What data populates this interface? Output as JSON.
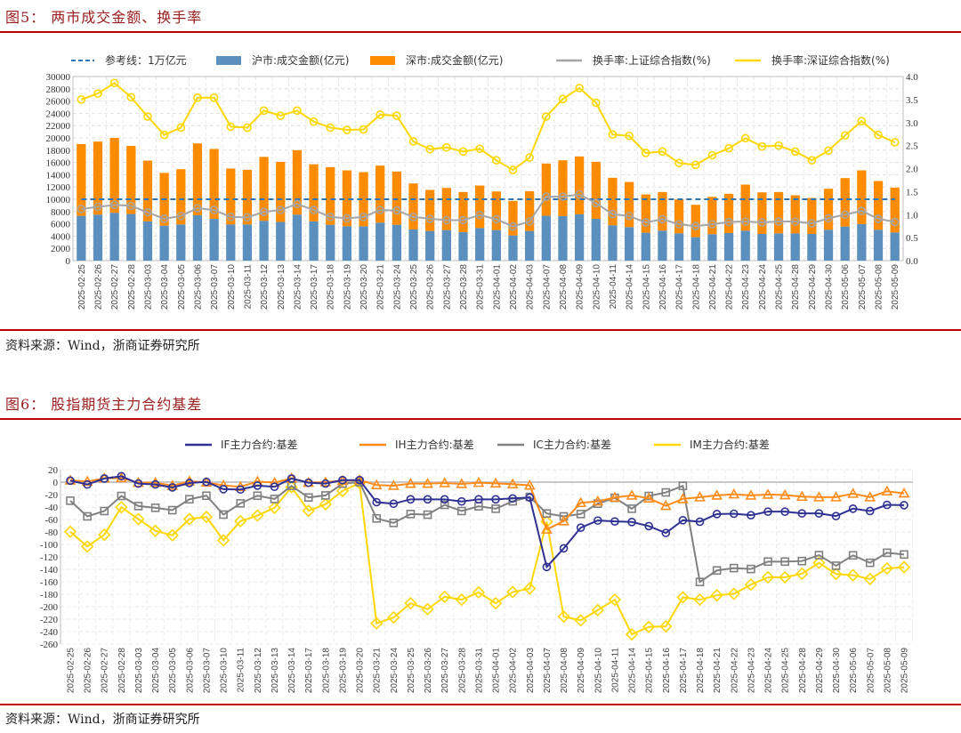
{
  "figure5": {
    "title": "图5： 两市成交金额、换手率",
    "source": "资料来源：Wind，浙商证券研究所"
  },
  "figure6": {
    "title": "图6： 股指期货主力合约基差",
    "source": "资料来源：Wind，浙商证券研究所"
  },
  "chart_data": [
    {
      "type": "bar",
      "stacked": true,
      "title": "两市成交金额、换手率",
      "x": [
        "2025-02-25",
        "2025-02-26",
        "2025-02-27",
        "2025-02-28",
        "2025-03-03",
        "2025-03-04",
        "2025-03-05",
        "2025-03-06",
        "2025-03-07",
        "2025-03-10",
        "2025-03-11",
        "2025-03-12",
        "2025-03-13",
        "2025-03-14",
        "2025-03-17",
        "2025-03-18",
        "2025-03-19",
        "2025-03-20",
        "2025-03-21",
        "2025-03-24",
        "2025-03-25",
        "2025-03-26",
        "2025-03-27",
        "2025-03-28",
        "2025-03-31",
        "2025-04-01",
        "2025-04-02",
        "2025-04-03",
        "2025-04-07",
        "2025-04-08",
        "2025-04-09",
        "2025-04-10",
        "2025-04-11",
        "2025-04-14",
        "2025-04-15",
        "2025-04-16",
        "2025-04-17",
        "2025-04-18",
        "2025-04-21",
        "2025-04-22",
        "2025-04-23",
        "2025-04-24",
        "2025-04-25",
        "2025-04-28",
        "2025-04-29",
        "2025-04-30",
        "2025-05-06",
        "2025-05-07",
        "2025-05-08",
        "2025-05-09"
      ],
      "series": [
        {
          "name": "沪市:成交金额(亿元)",
          "kind": "bar",
          "axis": "left",
          "color": "#5b8fbe",
          "values": [
            7300,
            7500,
            7800,
            7600,
            6400,
            5700,
            5900,
            7400,
            6800,
            5900,
            5900,
            6500,
            6300,
            7500,
            6400,
            5850,
            5610,
            5610,
            6190,
            5850,
            5080,
            4840,
            4980,
            4650,
            5320,
            4980,
            4110,
            4840,
            7310,
            7260,
            7550,
            6820,
            5760,
            5470,
            4550,
            4890,
            4450,
            3820,
            4310,
            4500,
            4890,
            4350,
            4450,
            4450,
            4350,
            5030,
            5560,
            5950,
            5030,
            4600
          ]
        },
        {
          "name": "深市:成交金额(亿元)",
          "kind": "bar",
          "axis": "left",
          "color": "#ff8c00",
          "values": [
            11700,
            11900,
            12200,
            11100,
            9900,
            8600,
            9000,
            11700,
            11400,
            9100,
            8900,
            10400,
            9800,
            10500,
            9300,
            9390,
            9100,
            8810,
            9290,
            8670,
            7500,
            6680,
            6870,
            6530,
            6920,
            6290,
            5620,
            6480,
            8510,
            9090,
            9430,
            9290,
            7740,
            7350,
            6240,
            6290,
            5520,
            5280,
            6090,
            6390,
            7500,
            6780,
            6730,
            6200,
            5860,
            6680,
            7890,
            8760,
            7940,
            7300
          ]
        },
        {
          "name": "换手率:上证综合指数(%)",
          "kind": "line",
          "axis": "right",
          "color": "#a5a5a5",
          "values": [
            1.12,
            1.17,
            1.21,
            1.19,
            1.05,
            0.91,
            0.97,
            1.14,
            1.1,
            0.95,
            0.94,
            1.06,
            1.1,
            1.23,
            1.1,
            0.95,
            0.92,
            0.95,
            1.1,
            1.09,
            0.95,
            0.91,
            0.88,
            0.88,
            0.99,
            0.9,
            0.74,
            0.85,
            1.39,
            1.39,
            1.44,
            1.25,
            1.01,
            0.97,
            0.83,
            0.9,
            0.79,
            0.75,
            0.79,
            0.84,
            0.85,
            0.83,
            0.85,
            0.85,
            0.81,
            0.92,
            1.0,
            1.08,
            0.91,
            0.84
          ]
        },
        {
          "name": "换手率:深证综合指数(%)",
          "kind": "line",
          "axis": "right",
          "color": "#ffd700",
          "values": [
            3.5,
            3.63,
            3.86,
            3.55,
            3.13,
            2.73,
            2.89,
            3.54,
            3.54,
            2.91,
            2.89,
            3.26,
            3.15,
            3.26,
            3.02,
            2.89,
            2.84,
            2.85,
            3.17,
            3.15,
            2.59,
            2.42,
            2.46,
            2.37,
            2.43,
            2.18,
            1.97,
            2.24,
            3.13,
            3.51,
            3.75,
            3.43,
            2.74,
            2.71,
            2.34,
            2.37,
            2.12,
            2.08,
            2.29,
            2.44,
            2.66,
            2.48,
            2.5,
            2.37,
            2.18,
            2.39,
            2.72,
            3.03,
            2.73,
            2.57
          ]
        }
      ],
      "reference_line": {
        "name": "参考线：1万亿元",
        "value": 10000,
        "color": "#2e75b6"
      },
      "legend": [
        "参考线：1万亿元",
        "沪市:成交金额(亿元)",
        "深市:成交金额(亿元)",
        "换手率:上证综合指数(%)",
        "换手率:深证综合指数(%)"
      ],
      "ylim_left": [
        0,
        30000
      ],
      "yticks_left": [
        "0",
        "2000",
        "4000",
        "6000",
        "8000",
        "10000",
        "12000",
        "14000",
        "16000",
        "18000",
        "20000",
        "22000",
        "24000",
        "26000",
        "28000",
        "30000"
      ],
      "ylim_right": [
        0,
        4.0
      ],
      "yticks_right": [
        "0.0",
        "0.5",
        "1.0",
        "1.5",
        "2.0",
        "2.5",
        "3.0",
        "3.5",
        "4.0"
      ],
      "grid": true,
      "legend_position": "top"
    },
    {
      "type": "line",
      "title": "股指期货主力合约基差",
      "x": [
        "2025-02-25",
        "2025-02-26",
        "2025-02-27",
        "2025-02-28",
        "2025-03-03",
        "2025-03-04",
        "2025-03-05",
        "2025-03-06",
        "2025-03-07",
        "2025-03-10",
        "2025-03-11",
        "2025-03-12",
        "2025-03-13",
        "2025-03-14",
        "2025-03-17",
        "2025-03-18",
        "2025-03-19",
        "2025-03-20",
        "2025-03-21",
        "2025-03-24",
        "2025-03-25",
        "2025-03-26",
        "2025-03-27",
        "2025-03-28",
        "2025-03-31",
        "2025-04-01",
        "2025-04-02",
        "2025-04-03",
        "2025-04-07",
        "2025-04-08",
        "2025-04-09",
        "2025-04-10",
        "2025-04-11",
        "2025-04-14",
        "2025-04-15",
        "2025-04-16",
        "2025-04-17",
        "2025-04-18",
        "2025-04-21",
        "2025-04-22",
        "2025-04-23",
        "2025-04-24",
        "2025-04-25",
        "2025-04-28",
        "2025-04-29",
        "2025-04-30",
        "2025-05-06",
        "2025-05-07",
        "2025-05-08",
        "2025-05-09"
      ],
      "series": [
        {
          "name": "IF主力合约:基差",
          "color": "#2e3192",
          "marker": "circle",
          "values": [
            2.4,
            -3.7,
            5.8,
            9.6,
            -2.3,
            -3.7,
            -8.5,
            -1.4,
            0.5,
            -11.3,
            -11.8,
            -5.6,
            -7.5,
            5.8,
            -0.9,
            -2.3,
            3.3,
            3.3,
            -32.2,
            -34.7,
            -27.6,
            -27.6,
            -27.6,
            -31,
            -27.6,
            -27.6,
            -26.1,
            -24.7,
            -136.2,
            -106.3,
            -73.1,
            -61.6,
            -63.1,
            -64,
            -70.6,
            -81.6,
            -61.2,
            -63.5,
            -51.2,
            -50.7,
            -53.1,
            -47.4,
            -47.4,
            -50.2,
            -50.2,
            -54.5,
            -42.6,
            -46.4,
            -36.5,
            -37
          ]
        },
        {
          "name": "IH主力合约:基差",
          "color": "#ff8c1a",
          "marker": "triangle",
          "values": [
            2.9,
            1.0,
            6.2,
            6.7,
            -0.9,
            -0.9,
            -5.6,
            1.5,
            -0.4,
            -5.2,
            -7.5,
            1.0,
            -0.9,
            6.2,
            -0.9,
            0,
            2.4,
            3.3,
            -4.7,
            -5.7,
            -2.4,
            -2.4,
            -1.4,
            -2.8,
            -0.9,
            -1.9,
            -3.3,
            -5.2,
            -75.9,
            -62.6,
            -33.2,
            -30.8,
            -24.6,
            -21.3,
            -26,
            -37.9,
            -27,
            -24.1,
            -21.3,
            -19.4,
            -21.3,
            -19.9,
            -20.8,
            -23.2,
            -24.1,
            -24.1,
            -18.4,
            -24.1,
            -14.6,
            -18
          ]
        },
        {
          "name": "IC主力合约:基差",
          "color": "#808080",
          "marker": "square",
          "values": [
            -29.8,
            -55,
            -46.4,
            -22.2,
            -38.4,
            -41.2,
            -45,
            -27.5,
            -21.8,
            -52.1,
            -34.1,
            -21.8,
            -27,
            -6.1,
            -24.6,
            -21.3,
            -2.4,
            0,
            -58.3,
            -65.5,
            -51.2,
            -52.2,
            -36.5,
            -46.4,
            -38.8,
            -42.7,
            -30.8,
            -23.7,
            -50.3,
            -55,
            -51.2,
            -34.6,
            -25.2,
            -42.7,
            -22.2,
            -16.5,
            -6.1,
            -160.3,
            -141.8,
            -138,
            -139.5,
            -127.6,
            -127.6,
            -126.7,
            -117.2,
            -134.2,
            -117.6,
            -129.5,
            -113.4,
            -116.2
          ]
        },
        {
          "name": "IM主力合约:基差",
          "color": "#ffd700",
          "marker": "diamond",
          "values": [
            -79.7,
            -103.4,
            -84.4,
            -40.3,
            -59.3,
            -78.2,
            -85.4,
            -59.3,
            -55.9,
            -93.4,
            -62.6,
            -53.6,
            -41.2,
            -8,
            -46,
            -35.5,
            -14.2,
            -1.4,
            -226.8,
            -217.3,
            -194.5,
            -204,
            -184.1,
            -188.8,
            -177,
            -194.5,
            -176.5,
            -170.8,
            -63.5,
            -215.9,
            -222,
            -205.5,
            -188.8,
            -244.4,
            -232.5,
            -231.6,
            -185,
            -188.8,
            -181.7,
            -179.3,
            -164.6,
            -152.8,
            -152.8,
            -147.1,
            -129.5,
            -147.5,
            -149.4,
            -155.6,
            -138.5,
            -136.6
          ]
        }
      ],
      "legend": [
        "IF主力合约:基差",
        "IH主力合约:基差",
        "IC主力合约:基差",
        "IM主力合约:基差"
      ],
      "ylim": [
        -260,
        20
      ],
      "yticks": [
        "20",
        "0",
        "-20",
        "-40",
        "-60",
        "-80",
        "-100",
        "-120",
        "-140",
        "-160",
        "-180",
        "-200",
        "-220",
        "-240",
        "-260"
      ],
      "grid": true,
      "legend_position": "top"
    }
  ]
}
